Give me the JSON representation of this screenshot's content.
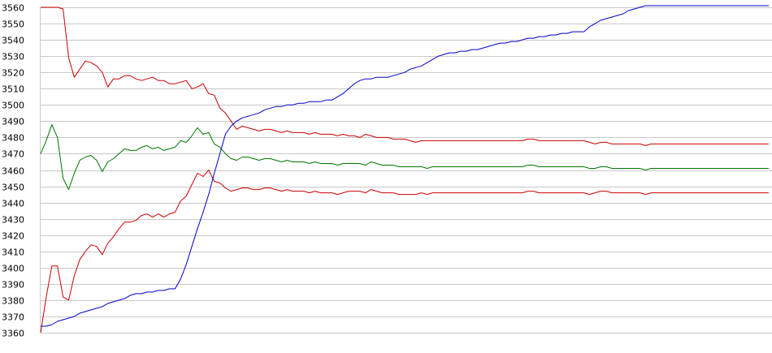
{
  "chart_data": {
    "type": "line",
    "title": "",
    "xlabel": "",
    "ylabel": "",
    "ylim": [
      3360,
      3560
    ],
    "yticks": [
      3560,
      3550,
      3540,
      3530,
      3520,
      3510,
      3500,
      3490,
      3480,
      3470,
      3460,
      3450,
      3440,
      3430,
      3420,
      3410,
      3400,
      3390,
      3380,
      3370,
      3360
    ],
    "grid": "horizontal",
    "legend": "none",
    "x_count": 131,
    "series": [
      {
        "key": "upper-band",
        "color": "#cc0000",
        "values": [
          3560,
          3560,
          3560,
          3560,
          3559,
          3529,
          3517,
          3522,
          3527,
          3526,
          3524,
          3520,
          3511,
          3516,
          3516,
          3518,
          3518,
          3516,
          3515,
          3516,
          3517,
          3515,
          3515,
          3513,
          3513,
          3514,
          3515,
          3510,
          3511,
          3513,
          3507,
          3506,
          3498,
          3495,
          3490,
          3485,
          3487,
          3486,
          3485,
          3484,
          3485,
          3485,
          3484,
          3483,
          3484,
          3483,
          3483,
          3483,
          3482,
          3483,
          3482,
          3482,
          3482,
          3481,
          3482,
          3481,
          3481,
          3480,
          3482,
          3481,
          3480,
          3480,
          3480,
          3479,
          3479,
          3479,
          3478,
          3477,
          3478,
          3478,
          3478,
          3478,
          3478,
          3478,
          3478,
          3478,
          3478,
          3478,
          3478,
          3478,
          3478,
          3478,
          3478,
          3478,
          3478,
          3478,
          3478,
          3479,
          3479,
          3478,
          3478,
          3478,
          3478,
          3478,
          3478,
          3478,
          3478,
          3478,
          3477,
          3476,
          3477,
          3477,
          3476,
          3476,
          3476,
          3476,
          3476,
          3476,
          3475,
          3476,
          3476,
          3476,
          3476,
          3476,
          3476,
          3476,
          3476,
          3476,
          3476,
          3476,
          3476,
          3476,
          3476,
          3476,
          3476,
          3476,
          3476,
          3476,
          3476,
          3476,
          3476
        ]
      },
      {
        "key": "middle-line",
        "color": "#007700",
        "values": [
          3470,
          3478,
          3488,
          3480,
          3455,
          3448,
          3458,
          3466,
          3468,
          3469,
          3466,
          3459,
          3465,
          3467,
          3470,
          3473,
          3472,
          3472,
          3474,
          3475,
          3473,
          3474,
          3472,
          3473,
          3474,
          3478,
          3477,
          3481,
          3486,
          3482,
          3483,
          3476,
          3474,
          3470,
          3467,
          3466,
          3468,
          3468,
          3467,
          3466,
          3467,
          3467,
          3466,
          3465,
          3466,
          3465,
          3465,
          3465,
          3464,
          3465,
          3464,
          3464,
          3464,
          3463,
          3464,
          3464,
          3464,
          3464,
          3463,
          3465,
          3464,
          3463,
          3463,
          3463,
          3462,
          3462,
          3462,
          3462,
          3462,
          3461,
          3462,
          3462,
          3462,
          3462,
          3462,
          3462,
          3462,
          3462,
          3462,
          3462,
          3462,
          3462,
          3462,
          3462,
          3462,
          3462,
          3462,
          3463,
          3463,
          3462,
          3462,
          3462,
          3462,
          3462,
          3462,
          3462,
          3462,
          3462,
          3461,
          3461,
          3462,
          3462,
          3461,
          3461,
          3461,
          3461,
          3461,
          3461,
          3460,
          3461,
          3461,
          3461,
          3461,
          3461,
          3461,
          3461,
          3461,
          3461,
          3461,
          3461,
          3461,
          3461,
          3461,
          3461,
          3461,
          3461,
          3461,
          3461,
          3461,
          3461,
          3461
        ]
      },
      {
        "key": "lower-band",
        "color": "#cc0000",
        "values": [
          3360,
          3382,
          3401,
          3401,
          3382,
          3380,
          3395,
          3405,
          3410,
          3414,
          3413,
          3408,
          3415,
          3419,
          3424,
          3428,
          3428,
          3429,
          3432,
          3433,
          3431,
          3433,
          3431,
          3433,
          3434,
          3441,
          3444,
          3451,
          3458,
          3456,
          3460,
          3453,
          3452,
          3449,
          3447,
          3448,
          3449,
          3449,
          3448,
          3448,
          3449,
          3449,
          3448,
          3447,
          3448,
          3447,
          3447,
          3447,
          3446,
          3447,
          3446,
          3446,
          3446,
          3445,
          3446,
          3447,
          3447,
          3447,
          3446,
          3448,
          3447,
          3446,
          3446,
          3446,
          3445,
          3445,
          3445,
          3445,
          3446,
          3445,
          3446,
          3446,
          3446,
          3446,
          3446,
          3446,
          3446,
          3446,
          3446,
          3446,
          3446,
          3446,
          3446,
          3446,
          3446,
          3446,
          3446,
          3447,
          3447,
          3446,
          3446,
          3446,
          3446,
          3446,
          3446,
          3446,
          3446,
          3446,
          3445,
          3446,
          3447,
          3447,
          3446,
          3446,
          3446,
          3446,
          3446,
          3446,
          3445,
          3446,
          3446,
          3446,
          3446,
          3446,
          3446,
          3446,
          3446,
          3446,
          3446,
          3446,
          3446,
          3446,
          3446,
          3446,
          3446,
          3446,
          3446,
          3446,
          3446,
          3446,
          3446
        ]
      },
      {
        "key": "price-line",
        "color": "#0000cc",
        "values": [
          3364,
          3364,
          3365,
          3367,
          3368,
          3369,
          3370,
          3372,
          3373,
          3374,
          3375,
          3376,
          3378,
          3379,
          3380,
          3381,
          3383,
          3384,
          3384,
          3385,
          3385,
          3386,
          3386,
          3387,
          3387,
          3393,
          3402,
          3413,
          3424,
          3434,
          3445,
          3458,
          3470,
          3482,
          3487,
          3490,
          3492,
          3493,
          3494,
          3495,
          3497,
          3498,
          3499,
          3499,
          3500,
          3500,
          3501,
          3501,
          3502,
          3502,
          3502,
          3503,
          3503,
          3505,
          3507,
          3510,
          3513,
          3515,
          3516,
          3516,
          3517,
          3517,
          3517,
          3518,
          3519,
          3520,
          3522,
          3523,
          3524,
          3526,
          3528,
          3530,
          3531,
          3532,
          3532,
          3533,
          3533,
          3534,
          3534,
          3535,
          3536,
          3537,
          3538,
          3538,
          3539,
          3539,
          3540,
          3541,
          3541,
          3542,
          3542,
          3543,
          3543,
          3544,
          3544,
          3545,
          3545,
          3545,
          3548,
          3550,
          3552,
          3553,
          3554,
          3555,
          3556,
          3558,
          3559,
          3560,
          3561,
          3561,
          3561,
          3561,
          3561,
          3561,
          3561,
          3561,
          3561,
          3561,
          3561,
          3561,
          3561,
          3561,
          3561,
          3561,
          3561,
          3561,
          3561,
          3561,
          3561,
          3561,
          3561
        ]
      }
    ]
  }
}
